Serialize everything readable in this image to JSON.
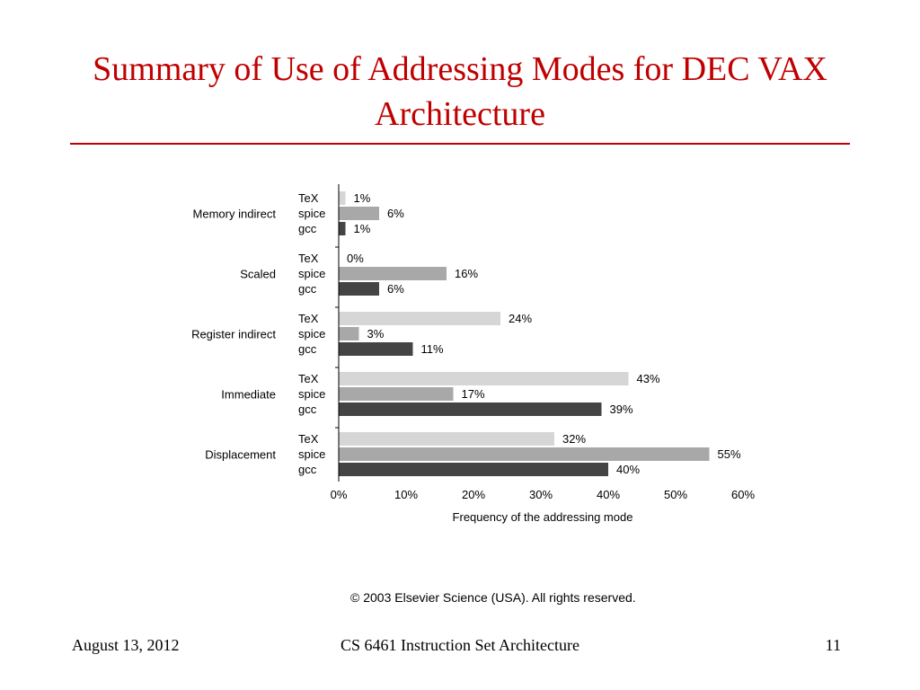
{
  "slide": {
    "title": "Summary of Use of Addressing Modes for DEC VAX Architecture",
    "copyright": "© 2003 Elsevier Science (USA). All rights reserved.",
    "footer": {
      "date": "August 13, 2012",
      "course": "CS 6461 Instruction Set Architecture",
      "page": "11"
    }
  },
  "colors": {
    "title": "#c00000",
    "TeX": "#d6d6d6",
    "spice": "#a8a8a8",
    "gcc": "#444444"
  },
  "chart_data": {
    "type": "bar",
    "orientation": "horizontal",
    "categories": [
      "Memory indirect",
      "Scaled",
      "Register indirect",
      "Immediate",
      "Displacement"
    ],
    "series": [
      {
        "name": "TeX",
        "values": [
          1,
          0,
          24,
          43,
          32
        ],
        "labels": [
          "1%",
          "0%",
          "24%",
          "43%",
          "32%"
        ]
      },
      {
        "name": "spice",
        "values": [
          6,
          16,
          3,
          17,
          55
        ],
        "labels": [
          "6%",
          "16%",
          "3%",
          "17%",
          "55%"
        ]
      },
      {
        "name": "gcc",
        "values": [
          1,
          6,
          11,
          39,
          40
        ],
        "labels": [
          "1%",
          "6%",
          "11%",
          "39%",
          "40%"
        ]
      }
    ],
    "xlabel": "Frequency of the addressing mode",
    "xlim": [
      0,
      60
    ],
    "xticks": [
      0,
      10,
      20,
      30,
      40,
      50,
      60
    ],
    "xtick_labels": [
      "0%",
      "10%",
      "20%",
      "30%",
      "40%",
      "50%",
      "60%"
    ],
    "grid": false,
    "legend": "none"
  }
}
